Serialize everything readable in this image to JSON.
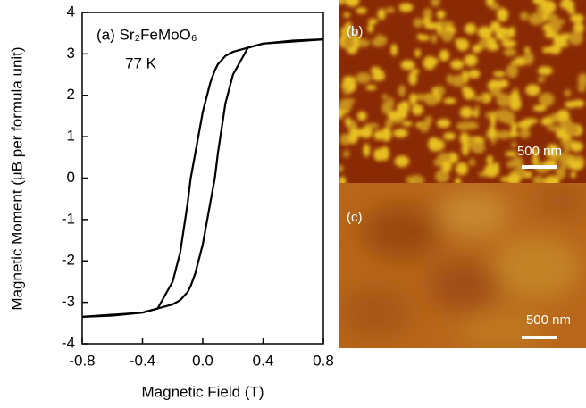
{
  "chart_data": {
    "type": "line",
    "annotations": [
      "(a) Sr₂FeMoO₆",
      "77 K"
    ],
    "x_label": "Magnetic Field (T)",
    "y_label": "Magnetic Moment (μB per formula unit)",
    "x": [
      -0.8,
      -0.6,
      -0.4,
      -0.3,
      -0.2,
      -0.15,
      -0.1,
      -0.08,
      -0.05,
      0,
      0.05,
      0.08,
      0.1,
      0.15,
      0.2,
      0.3,
      0.4,
      0.6,
      0.8
    ],
    "series": [
      {
        "color": "#000000",
        "values": [
          -3.35,
          -3.32,
          -3.25,
          -3.15,
          -2.5,
          -1.8,
          -0.6,
          0,
          0.6,
          1.6,
          2.3,
          2.6,
          2.75,
          2.95,
          3.05,
          3.15,
          3.25,
          3.3,
          3.35
        ]
      },
      {
        "color": "#000000",
        "values": [
          -3.35,
          -3.3,
          -3.25,
          -3.15,
          -3.05,
          -2.95,
          -2.75,
          -2.6,
          -2.3,
          -1.6,
          -0.6,
          0,
          0.6,
          1.8,
          2.5,
          3.15,
          3.25,
          3.32,
          3.35
        ]
      }
    ],
    "xlim": [
      -0.8,
      0.8
    ],
    "xticks": [
      -0.8,
      -0.4,
      {
        "value": 0,
        "label": "0.0"
      },
      0.4,
      0.8
    ],
    "ylim": [
      -4,
      4
    ],
    "yticks": [
      -4,
      -3,
      -2,
      -1,
      0,
      1,
      2,
      3,
      4
    ],
    "grid": false
  },
  "images": [
    {
      "label": "(b)",
      "scale_bar": "500 nm"
    },
    {
      "label": "(c)",
      "scale_bar": "500 nm"
    }
  ]
}
